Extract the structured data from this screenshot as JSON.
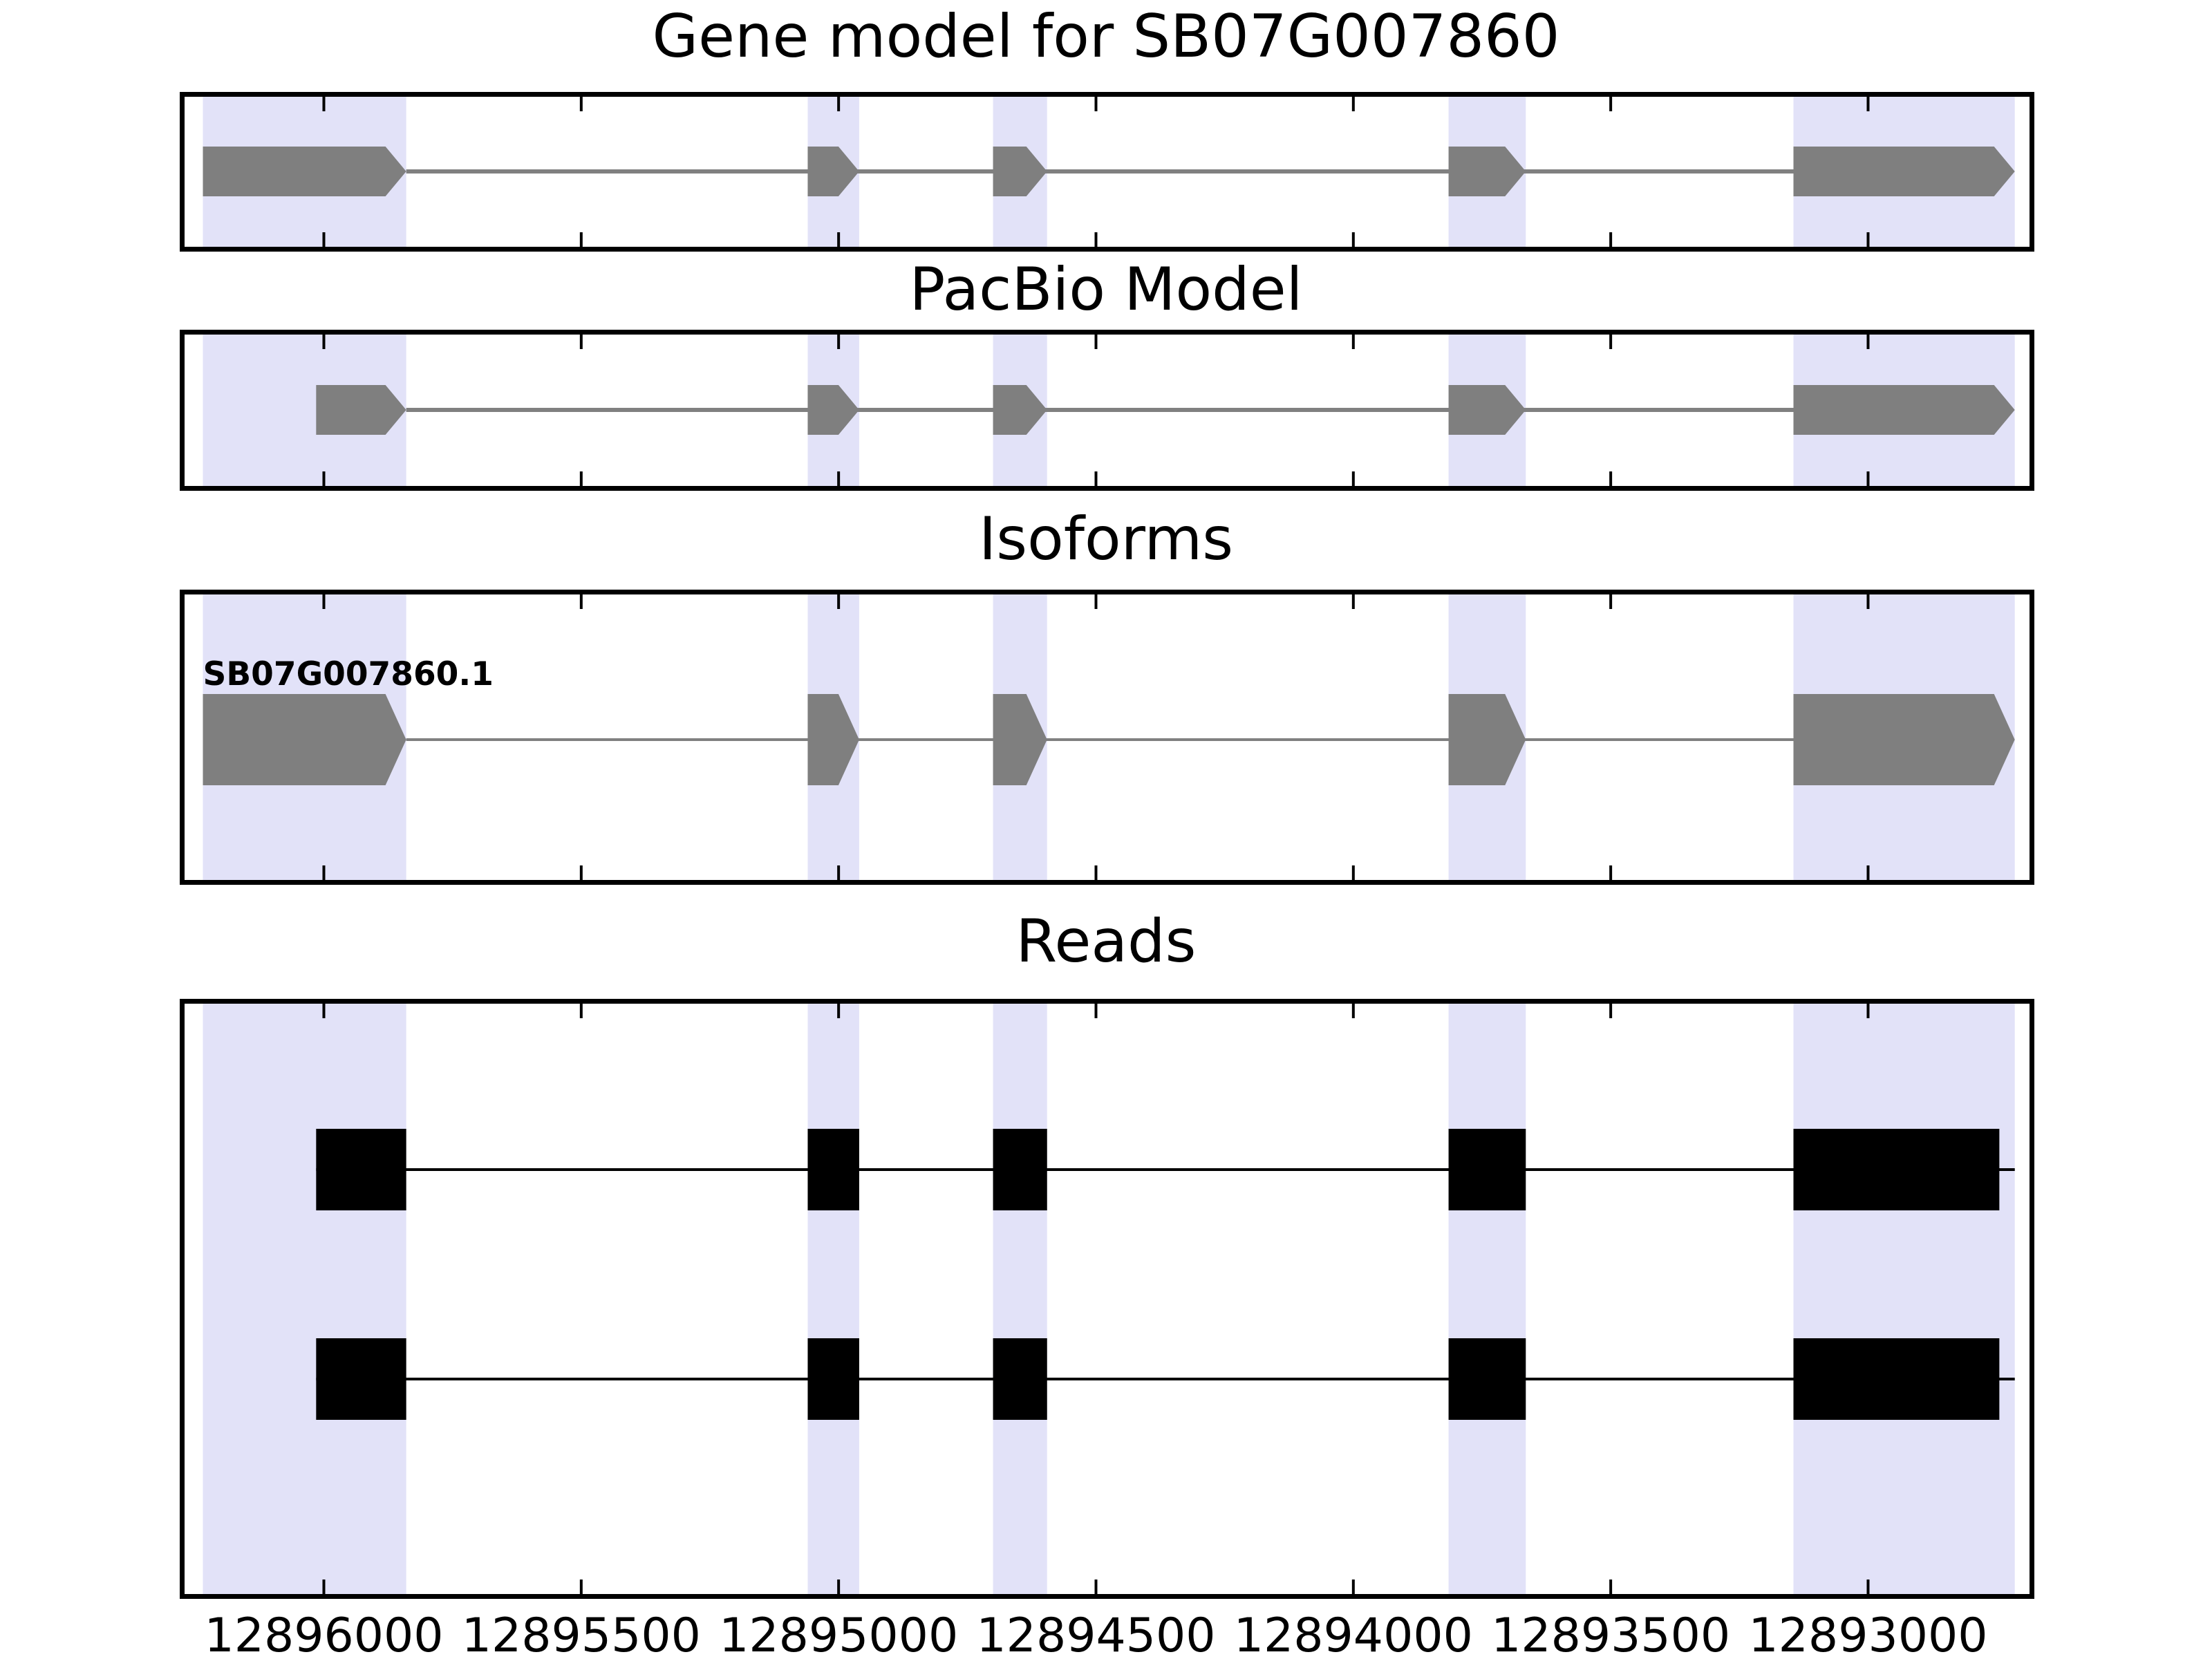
{
  "isoform_label": "SB07G007860.1",
  "x_axis": {
    "tick_labels": [
      "12896000",
      "12895500",
      "12895000",
      "12894500",
      "12894000",
      "12893500",
      "12893000"
    ],
    "tick_values": [
      12896000,
      12895500,
      12895000,
      12894500,
      12894000,
      12893500,
      12893000
    ],
    "domain_left": 12896280,
    "domain_right": 12892677,
    "direction": "decreasing"
  },
  "colors": {
    "background": "#ffffff",
    "exon_fill": "#7f7f7f",
    "intron_line": "#808080",
    "highlight_band": "#e2e2f8",
    "read_fill": "#000000",
    "frame": "#000000"
  },
  "chart_data": {
    "type": "gene-model-tracks",
    "coordinate_system": "genomic position (bp), x axis decreasing left to right",
    "x_domain": [
      12896280,
      12892677
    ],
    "x_ticks": [
      12896000,
      12895500,
      12895000,
      12894500,
      12894000,
      12893500,
      12893000
    ],
    "highlight_regions": [
      [
        12896235,
        12895840
      ],
      [
        12895060,
        12894960
      ],
      [
        12894700,
        12894595
      ],
      [
        12893815,
        12893665
      ],
      [
        12893145,
        12892715
      ]
    ],
    "tracks": [
      {
        "title": "Gene model for SB07G007860",
        "glyph": "arrow",
        "color": "#7f7f7f",
        "exons": [
          [
            12896235,
            12895840
          ],
          [
            12895060,
            12894960
          ],
          [
            12894700,
            12894595
          ],
          [
            12893815,
            12893665
          ],
          [
            12893145,
            12892715
          ]
        ]
      },
      {
        "title": "PacBio Model",
        "glyph": "arrow",
        "color": "#7f7f7f",
        "exons": [
          [
            12896015,
            12895840
          ],
          [
            12895060,
            12894960
          ],
          [
            12894700,
            12894595
          ],
          [
            12893815,
            12893665
          ],
          [
            12893145,
            12892715
          ]
        ]
      },
      {
        "title": "Isoforms",
        "glyph": "arrow",
        "color": "#7f7f7f",
        "label": "SB07G007860.1",
        "exons": [
          [
            12896235,
            12895840
          ],
          [
            12895060,
            12894960
          ],
          [
            12894700,
            12894595
          ],
          [
            12893815,
            12893665
          ],
          [
            12893145,
            12892715
          ]
        ]
      },
      {
        "title": "Reads",
        "glyph": "rect",
        "color": "#000000",
        "reads": [
          {
            "exons": [
              [
                12896015,
                12895840
              ],
              [
                12895060,
                12894960
              ],
              [
                12894700,
                12894595
              ],
              [
                12893815,
                12893665
              ],
              [
                12893145,
                12892745
              ]
            ],
            "line_end": 12892715
          },
          {
            "exons": [
              [
                12896015,
                12895840
              ],
              [
                12895060,
                12894960
              ],
              [
                12894700,
                12894595
              ],
              [
                12893815,
                12893665
              ],
              [
                12893145,
                12892745
              ]
            ],
            "line_end": 12892715
          }
        ]
      }
    ]
  }
}
